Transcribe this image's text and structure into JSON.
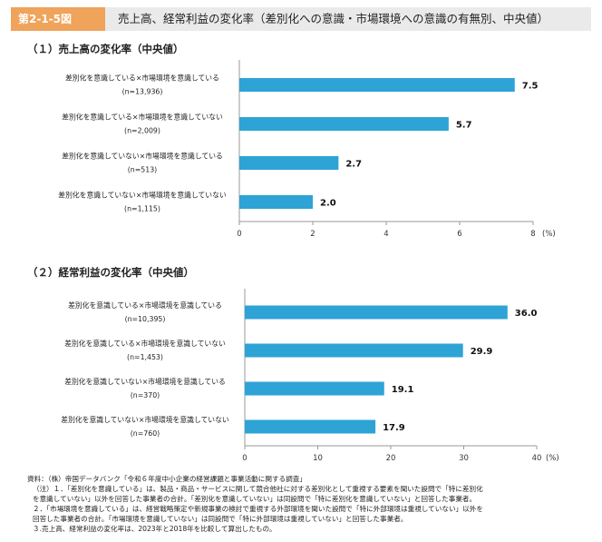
{
  "header": {
    "figure_label": "第2-1-5図",
    "title": "売上高、経常利益の変化率（差別化への意識・市場環境への意識の有無別、中央値）"
  },
  "colors": {
    "bar": "#2ea3d5",
    "label_bg": "#f0a35a",
    "title_bg": "#eaeaea"
  },
  "chart_data": [
    {
      "type": "bar",
      "orientation": "horizontal",
      "title": "（１）売上高の変化率（中央値）",
      "categories": [
        "差別化を意識している×市場環境を意識している",
        "差別化を意識している×市場環境を意識していない",
        "差別化を意識していない×市場環境を意識している",
        "差別化を意識していない×市場環境を意識していない"
      ],
      "n_labels": [
        "(n=13,936)",
        "(n=2,009)",
        "(n=513)",
        "(n=1,115)"
      ],
      "values": [
        7.5,
        5.7,
        2.7,
        2.0
      ],
      "value_labels": [
        "7.5",
        "5.7",
        "2.7",
        "2.0"
      ],
      "xlim": [
        0,
        8
      ],
      "ticks": [
        "0",
        "2",
        "4",
        "6",
        "8"
      ],
      "unit": "(%)"
    },
    {
      "type": "bar",
      "orientation": "horizontal",
      "title": "（２）経常利益の変化率（中央値）",
      "categories": [
        "差別化を意識している×市場環境を意識している",
        "差別化を意識している×市場環境を意識していない",
        "差別化を意識していない×市場環境を意識している",
        "差別化を意識していない×市場環境を意識していない"
      ],
      "n_labels": [
        "(n=10,395)",
        "(n=1,453)",
        "(n=370)",
        "(n=760)"
      ],
      "values": [
        36.0,
        29.9,
        19.1,
        17.9
      ],
      "value_labels": [
        "36.0",
        "29.9",
        "19.1",
        "17.9"
      ],
      "xlim": [
        0,
        40
      ],
      "ticks": [
        "0",
        "10",
        "20",
        "30",
        "40"
      ],
      "unit": "(%)"
    }
  ],
  "notes": [
    "資料：（株）帝国データバンク「令和６年度中小企業の経営課題と事業活動に関する調査」",
    "（注）１．「差別化を意識している」は、製品・商品・サービスに関して競合他社に対する差別化として重視する要素を聞いた設問で「特に差別化",
    "を意識していない」以外を回答した事業者の合計。「差別化を意識していない」は同設問で「特に差別化を意識していない」と回答した事業者。",
    "２．「市場環境を意識している」は、経営戦略策定や新規事業の検討で重視する外部環境を聞いた設問で「特に外部環境は重視していない」以外を",
    "回答した事業者の合計。「市場環境を意識していない」は同設問で「特に外部環境は重視していない」と回答した事業者。",
    "３.売上高、経常利益の変化率は、2023年と2018年を比較して算出したもの。"
  ]
}
